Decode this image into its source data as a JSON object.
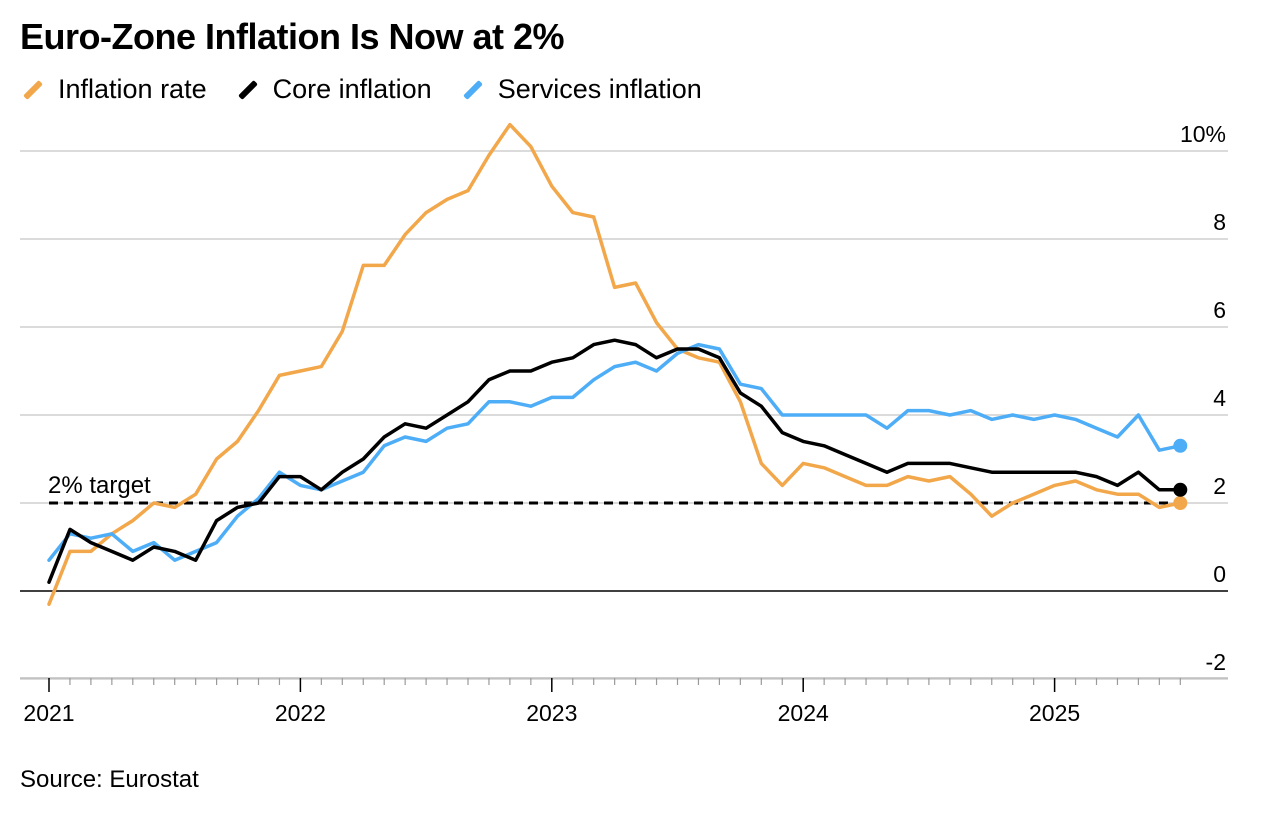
{
  "title": "Euro-Zone Inflation Is Now at 2%",
  "source": "Source: Eurostat",
  "legend": [
    {
      "name": "Inflation rate",
      "color": "#F2A74B"
    },
    {
      "name": "Core inflation",
      "color": "#000000"
    },
    {
      "name": "Services inflation",
      "color": "#4DADF7"
    }
  ],
  "chart_data": {
    "type": "line",
    "title": "Euro-Zone Inflation Is Now at 2%",
    "xlabel": "",
    "ylabel": "",
    "x_start": "2021-01",
    "x_frequency": "monthly",
    "x_ticks": [
      "2021",
      "2022",
      "2023",
      "2024",
      "2025"
    ],
    "y_ticks": [
      "-2",
      "0",
      "2",
      "4",
      "6",
      "8",
      "10%"
    ],
    "ylim": [
      -2,
      10.5
    ],
    "grid": true,
    "legend_position": "top-left",
    "reference_line": {
      "value": 2,
      "label": "2% target",
      "style": "dashed"
    },
    "series": [
      {
        "name": "Inflation rate",
        "color": "#F2A74B",
        "values": [
          -0.3,
          0.9,
          0.9,
          1.3,
          1.6,
          2.0,
          1.9,
          2.2,
          3.0,
          3.4,
          4.1,
          4.9,
          5.0,
          5.1,
          5.9,
          7.4,
          7.4,
          8.1,
          8.6,
          8.9,
          9.1,
          9.9,
          10.6,
          10.1,
          9.2,
          8.6,
          8.5,
          6.9,
          7.0,
          6.1,
          5.5,
          5.3,
          5.2,
          4.3,
          2.9,
          2.4,
          2.9,
          2.8,
          2.6,
          2.4,
          2.4,
          2.6,
          2.5,
          2.6,
          2.2,
          1.7,
          2.0,
          2.2,
          2.4,
          2.5,
          2.3,
          2.2,
          2.2,
          1.9,
          2.0
        ]
      },
      {
        "name": "Core inflation",
        "color": "#000000",
        "values": [
          0.2,
          1.4,
          1.1,
          0.9,
          0.7,
          1.0,
          0.9,
          0.7,
          1.6,
          1.9,
          2.0,
          2.6,
          2.6,
          2.3,
          2.7,
          3.0,
          3.5,
          3.8,
          3.7,
          4.0,
          4.3,
          4.8,
          5.0,
          5.0,
          5.2,
          5.3,
          5.6,
          5.7,
          5.6,
          5.3,
          5.5,
          5.5,
          5.3,
          4.5,
          4.2,
          3.6,
          3.4,
          3.3,
          3.1,
          2.9,
          2.7,
          2.9,
          2.9,
          2.9,
          2.8,
          2.7,
          2.7,
          2.7,
          2.7,
          2.7,
          2.6,
          2.4,
          2.7,
          2.3,
          2.3
        ]
      },
      {
        "name": "Services inflation",
        "color": "#4DADF7",
        "values": [
          0.7,
          1.3,
          1.2,
          1.3,
          0.9,
          1.1,
          0.7,
          0.9,
          1.1,
          1.7,
          2.1,
          2.7,
          2.4,
          2.3,
          2.5,
          2.7,
          3.3,
          3.5,
          3.4,
          3.7,
          3.8,
          4.3,
          4.3,
          4.2,
          4.4,
          4.4,
          4.8,
          5.1,
          5.2,
          5.0,
          5.4,
          5.6,
          5.5,
          4.7,
          4.6,
          4.0,
          4.0,
          4.0,
          4.0,
          4.0,
          3.7,
          4.1,
          4.1,
          4.0,
          4.1,
          3.9,
          4.0,
          3.9,
          4.0,
          3.9,
          3.7,
          3.5,
          4.0,
          3.2,
          3.3
        ]
      }
    ]
  }
}
